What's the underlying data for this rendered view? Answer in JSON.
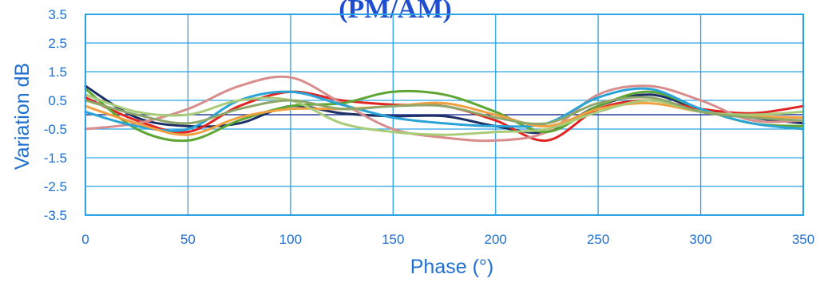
{
  "chart_data": {
    "type": "line",
    "title": "(PM/AM)",
    "xlabel": "Phase (°)",
    "ylabel": "Variation dB",
    "xlim": [
      0,
      350
    ],
    "ylim": [
      -3.5,
      3.5
    ],
    "x_ticks": [
      0,
      50,
      100,
      150,
      200,
      250,
      300,
      350
    ],
    "y_ticks": [
      3.5,
      2.5,
      1.5,
      0.5,
      -0.5,
      -1.5,
      -2.5,
      -3.5
    ],
    "y_tick_labels": [
      "3.5",
      "2.5",
      "1.5",
      "0.5",
      "-0.5",
      "-1.5",
      "-2.5",
      "-3.5"
    ],
    "reference_line": 0,
    "grid": true,
    "colors": {
      "grid": "#29a3e6",
      "reference": "#2b3fa0",
      "text": "#1f6fd1",
      "title": "#1f4fd0"
    },
    "x": [
      0,
      25,
      50,
      75,
      100,
      125,
      150,
      175,
      200,
      225,
      250,
      275,
      300,
      325,
      350
    ],
    "series": [
      {
        "color": "#1c2f66",
        "values": [
          1.0,
          -0.1,
          -0.4,
          -0.3,
          0.3,
          0.05,
          -0.05,
          -0.05,
          -0.4,
          -0.6,
          0.3,
          0.7,
          0.2,
          -0.1,
          -0.3
        ]
      },
      {
        "color": "#e02424",
        "values": [
          0.6,
          -0.2,
          -0.6,
          0.3,
          0.8,
          0.5,
          0.35,
          0.3,
          -0.2,
          -0.9,
          0.2,
          0.5,
          0.2,
          0.05,
          0.3
        ]
      },
      {
        "color": "#d98c8c",
        "values": [
          -0.5,
          -0.3,
          0.2,
          1.0,
          1.3,
          0.4,
          -0.5,
          -0.8,
          -0.9,
          -0.6,
          0.7,
          1.0,
          0.5,
          -0.2,
          -0.2
        ]
      },
      {
        "color": "#5ea634",
        "values": [
          0.9,
          -0.5,
          -0.9,
          -0.2,
          0.3,
          0.4,
          0.8,
          0.7,
          0.1,
          -0.6,
          0.3,
          0.8,
          0.2,
          -0.3,
          -0.4
        ]
      },
      {
        "color": "#2aa3d6",
        "values": [
          0.1,
          -0.4,
          -0.5,
          0.5,
          0.8,
          0.35,
          -0.1,
          -0.3,
          -0.4,
          -0.3,
          0.6,
          0.9,
          0.2,
          -0.3,
          -0.5
        ]
      },
      {
        "color": "#f0a040",
        "values": [
          0.3,
          -0.3,
          -0.7,
          -0.1,
          0.2,
          0.2,
          0.3,
          0.4,
          0.0,
          -0.4,
          0.2,
          0.4,
          0.1,
          -0.05,
          -0.1
        ]
      },
      {
        "color": "#a8cc78",
        "values": [
          0.7,
          0.1,
          0.0,
          0.5,
          0.5,
          -0.3,
          -0.6,
          -0.7,
          -0.6,
          -0.5,
          0.1,
          0.5,
          0.1,
          0.0,
          0.1
        ]
      },
      {
        "color": "#8fa86a",
        "values": [
          0.5,
          0.0,
          -0.3,
          0.2,
          0.5,
          0.2,
          0.3,
          0.3,
          -0.1,
          -0.3,
          0.4,
          0.6,
          0.1,
          -0.1,
          -0.2
        ]
      }
    ]
  }
}
